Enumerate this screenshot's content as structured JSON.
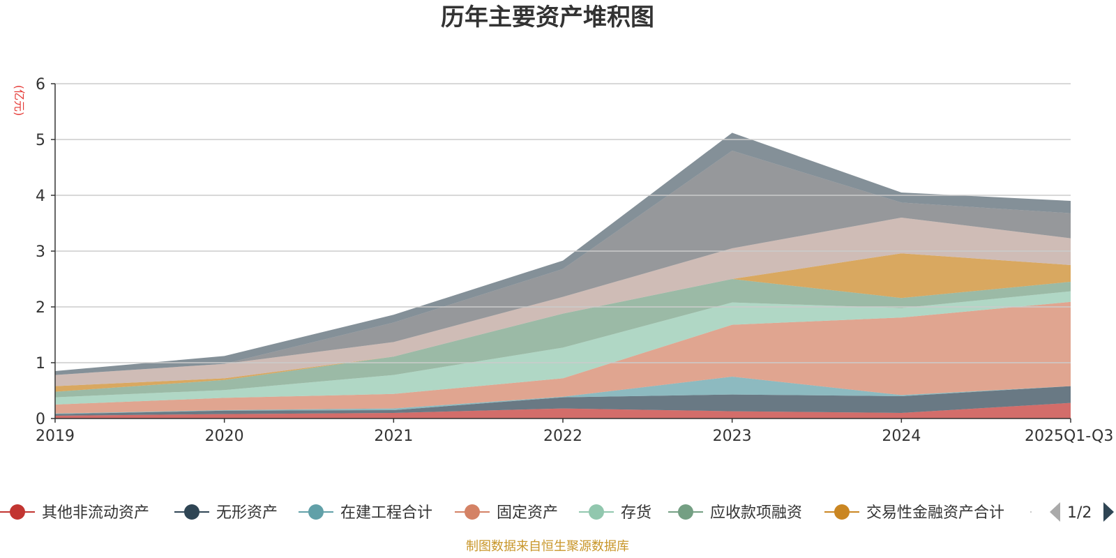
{
  "colors": {
    "other_noncurrent": "#c23531",
    "intangible": "#2f4554",
    "construction": "#61a0a8",
    "fixed": "#d48265",
    "inventory": "#91c7ae",
    "receivables_financing": "#749f83",
    "trading_financial": "#ca8622",
    "layer8": "#bda29a",
    "layer9": "#6e7074",
    "layer10": "#546570",
    "pager_active": "#2f4554",
    "pager_inactive": "#aaaaaa",
    "footer": "#c8962a",
    "unit": "#e53935"
  },
  "chart_data": {
    "type": "area",
    "stacked": true,
    "title": "历年主要资产堆积图",
    "ylabel": "(亿元)",
    "xlabel": "",
    "ylim": [
      0,
      6
    ],
    "yticks": [
      0,
      1,
      2,
      3,
      4,
      5,
      6
    ],
    "grid": true,
    "categories": [
      "2019",
      "2020",
      "2021",
      "2022",
      "2023",
      "2024",
      "2025Q1-Q3"
    ],
    "series": [
      {
        "name": "其他非流动资产",
        "color_key": "other_noncurrent",
        "values": [
          0.05,
          0.08,
          0.1,
          0.18,
          0.13,
          0.1,
          0.28
        ]
      },
      {
        "name": "无形资产",
        "color_key": "intangible",
        "values": [
          0.03,
          0.06,
          0.05,
          0.2,
          0.3,
          0.3,
          0.3
        ]
      },
      {
        "name": "在建工程合计",
        "color_key": "construction",
        "values": [
          0.01,
          0.01,
          0.03,
          0.01,
          0.32,
          0.02,
          0.0
        ]
      },
      {
        "name": "固定资产",
        "color_key": "fixed",
        "values": [
          0.16,
          0.22,
          0.26,
          0.33,
          0.93,
          1.39,
          1.51
        ]
      },
      {
        "name": "存货",
        "color_key": "inventory",
        "values": [
          0.13,
          0.14,
          0.34,
          0.55,
          0.4,
          0.17,
          0.19
        ]
      },
      {
        "name": "应收款项融资",
        "color_key": "receivables_financing",
        "values": [
          0.1,
          0.18,
          0.33,
          0.61,
          0.42,
          0.18,
          0.17
        ]
      },
      {
        "name": "交易性金融资产合计",
        "color_key": "trading_financial",
        "values": [
          0.1,
          0.03,
          0.0,
          0.0,
          0.0,
          0.8,
          0.3
        ]
      },
      {
        "name": "",
        "color_key": "layer8",
        "values": [
          0.2,
          0.26,
          0.26,
          0.3,
          0.55,
          0.64,
          0.48
        ]
      },
      {
        "name": "",
        "color_key": "layer9",
        "values": [
          0.0,
          0.0,
          0.35,
          0.5,
          1.75,
          0.27,
          0.45
        ]
      },
      {
        "name": "",
        "color_key": "layer10",
        "values": [
          0.07,
          0.14,
          0.14,
          0.15,
          0.32,
          0.18,
          0.22
        ]
      }
    ]
  },
  "legend": {
    "items": [
      "其他非流动资产",
      "无形资产",
      "在建工程合计",
      "固定资产",
      "存货",
      "应收款项融资",
      "交易性金融资产合计"
    ],
    "page": "1/2"
  },
  "footer": "制图数据来自恒生聚源数据库"
}
